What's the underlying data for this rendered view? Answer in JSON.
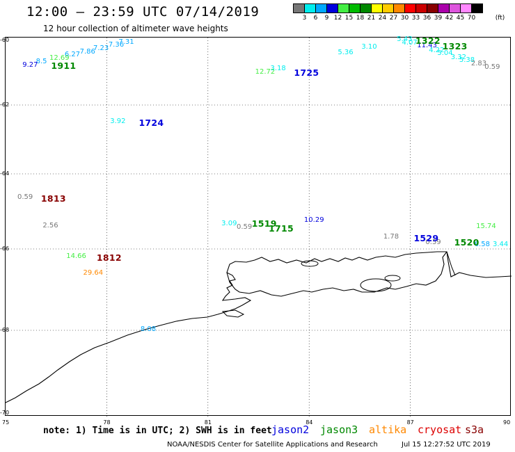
{
  "header": {
    "title": "12:00 — 23:59 UTC 07/14/2019",
    "subtitle": "12 hour collection of altimeter wave heights"
  },
  "color_scale": {
    "unit": "(ft)",
    "bins": [
      {
        "label": "3",
        "color": "#777777"
      },
      {
        "label": "6",
        "color": "#00eeee"
      },
      {
        "label": "9",
        "color": "#00a8ff"
      },
      {
        "label": "12",
        "color": "#0000dd"
      },
      {
        "label": "15",
        "color": "#44ee44"
      },
      {
        "label": "18",
        "color": "#00bb00"
      },
      {
        "label": "21",
        "color": "#008800"
      },
      {
        "label": "24",
        "color": "#ffff00"
      },
      {
        "label": "27",
        "color": "#ffcc00"
      },
      {
        "label": "30",
        "color": "#ff8800"
      },
      {
        "label": "33",
        "color": "#ff0000"
      },
      {
        "label": "36",
        "color": "#cc0000"
      },
      {
        "label": "39",
        "color": "#880000"
      },
      {
        "label": "42",
        "color": "#aa00aa"
      },
      {
        "label": "45",
        "color": "#dd55dd"
      },
      {
        "label": "70",
        "color": "#ff88ff"
      },
      {
        "label": "",
        "color": "#000000"
      }
    ]
  },
  "axes": {
    "lat_ticks": [
      "-60",
      "-62",
      "-64",
      "-66",
      "-68",
      "-70"
    ],
    "lon_ticks": [
      "75",
      "78",
      "81",
      "84",
      "87",
      "90"
    ]
  },
  "observations": [
    {
      "text": "7.31",
      "color": "#00a8ff",
      "lon": 78.35,
      "lat": -60.08
    },
    {
      "text": "7.36",
      "color": "#00a8ff",
      "lon": 78.05,
      "lat": -60.18
    },
    {
      "text": "7.23",
      "color": "#00a8ff",
      "lon": 77.6,
      "lat": -60.28
    },
    {
      "text": "7.86",
      "color": "#00a8ff",
      "lon": 77.2,
      "lat": -60.38
    },
    {
      "text": "6.27",
      "color": "#00a8ff",
      "lon": 76.75,
      "lat": -60.48
    },
    {
      "text": "12.69",
      "color": "#44ee44",
      "lon": 76.3,
      "lat": -60.58
    },
    {
      "text": "8.5",
      "color": "#00a8ff",
      "lon": 75.9,
      "lat": -60.68
    },
    {
      "text": "9.27",
      "color": "#0000dd",
      "lon": 75.5,
      "lat": -60.8
    },
    {
      "text": "12.72",
      "color": "#44ee44",
      "lon": 82.4,
      "lat": -61.0
    },
    {
      "text": "3.18",
      "color": "#00eeee",
      "lon": 82.85,
      "lat": -60.9
    },
    {
      "text": "5.36",
      "color": "#00eeee",
      "lon": 84.85,
      "lat": -60.4
    },
    {
      "text": "3.10",
      "color": "#00eeee",
      "lon": 85.55,
      "lat": -60.23
    },
    {
      "text": "5.43",
      "color": "#00eeee",
      "lon": 86.6,
      "lat": -60.0
    },
    {
      "text": "4.07",
      "color": "#00eeee",
      "lon": 86.75,
      "lat": -60.1
    },
    {
      "text": "11.43",
      "color": "#0000dd",
      "lon": 87.2,
      "lat": -60.2
    },
    {
      "text": "4.22",
      "color": "#00eeee",
      "lon": 87.55,
      "lat": -60.35
    },
    {
      "text": "5.04",
      "color": "#00eeee",
      "lon": 87.8,
      "lat": -60.43
    },
    {
      "text": "3.32",
      "color": "#00eeee",
      "lon": 88.2,
      "lat": -60.55
    },
    {
      "text": "5.38",
      "color": "#00eeee",
      "lon": 88.45,
      "lat": -60.65
    },
    {
      "text": "2.83",
      "color": "#777777",
      "lon": 88.8,
      "lat": -60.75
    },
    {
      "text": "0.59",
      "color": "#777777",
      "lon": 89.2,
      "lat": -60.85
    },
    {
      "text": "3.92",
      "color": "#00eeee",
      "lon": 78.1,
      "lat": -62.5
    },
    {
      "text": "0.59",
      "color": "#777777",
      "lon": 75.35,
      "lat": -64.65
    },
    {
      "text": "2.56",
      "color": "#777777",
      "lon": 76.1,
      "lat": -65.4
    },
    {
      "text": "3.09",
      "color": "#00eeee",
      "lon": 81.4,
      "lat": -65.35
    },
    {
      "text": "0.59",
      "color": "#777777",
      "lon": 81.85,
      "lat": -65.45
    },
    {
      "text": "10.29",
      "color": "#0000dd",
      "lon": 83.85,
      "lat": -65.25
    },
    {
      "text": "1.78",
      "color": "#777777",
      "lon": 86.2,
      "lat": -65.7
    },
    {
      "text": "0.59",
      "color": "#777777",
      "lon": 87.45,
      "lat": -65.85
    },
    {
      "text": "15.74",
      "color": "#44ee44",
      "lon": 88.95,
      "lat": -65.43
    },
    {
      "text": "6.58",
      "color": "#00a8ff",
      "lon": 88.9,
      "lat": -65.9
    },
    {
      "text": "3.44",
      "color": "#00eeee",
      "lon": 89.65,
      "lat": -65.9
    },
    {
      "text": "14.66",
      "color": "#44ee44",
      "lon": 76.8,
      "lat": -66.2
    },
    {
      "text": "29.64",
      "color": "#ff8800",
      "lon": 77.3,
      "lat": -66.62
    },
    {
      "text": "8.08",
      "color": "#00a8ff",
      "lon": 79.0,
      "lat": -68.0
    }
  ],
  "pass_times": [
    {
      "text": "1911",
      "color": "#008800",
      "lon": 76.35,
      "lat": -60.78
    },
    {
      "text": "1725",
      "color": "#0000dd",
      "lon": 83.55,
      "lat": -60.98
    },
    {
      "text": "1322",
      "color": "#008800",
      "lon": 87.15,
      "lat": -59.95
    },
    {
      "text": "1323",
      "color": "#008800",
      "lon": 87.95,
      "lat": -60.17
    },
    {
      "text": "1724",
      "color": "#0000dd",
      "lon": 78.95,
      "lat": -62.5
    },
    {
      "text": "1813",
      "color": "#880000",
      "lon": 76.05,
      "lat": -64.65
    },
    {
      "text": "1519",
      "color": "#008800",
      "lon": 82.3,
      "lat": -65.32
    },
    {
      "text": "1715",
      "color": "#008800",
      "lon": 82.8,
      "lat": -65.45
    },
    {
      "text": "1529",
      "color": "#0000dd",
      "lon": 87.1,
      "lat": -65.7
    },
    {
      "text": "1520",
      "color": "#008800",
      "lon": 88.3,
      "lat": -65.82
    },
    {
      "text": "1812",
      "color": "#880000",
      "lon": 77.7,
      "lat": -66.2
    }
  ],
  "notes": {
    "text": "note: 1) Time is in UTC; 2) SWH is in feet",
    "satellites": [
      {
        "name": "jason2",
        "color": "#0000dd"
      },
      {
        "name": "jason3",
        "color": "#008800"
      },
      {
        "name": "altika",
        "color": "#ff8800"
      },
      {
        "name": "cryosat",
        "color": "#dd0000"
      },
      {
        "name": "s3a",
        "color": "#880000"
      }
    ]
  },
  "footer": {
    "credit": "NOAA/NESDIS Center for Satellite Applications and Research",
    "timestamp": "Jul 15 12:27:52 UTC 2019"
  }
}
